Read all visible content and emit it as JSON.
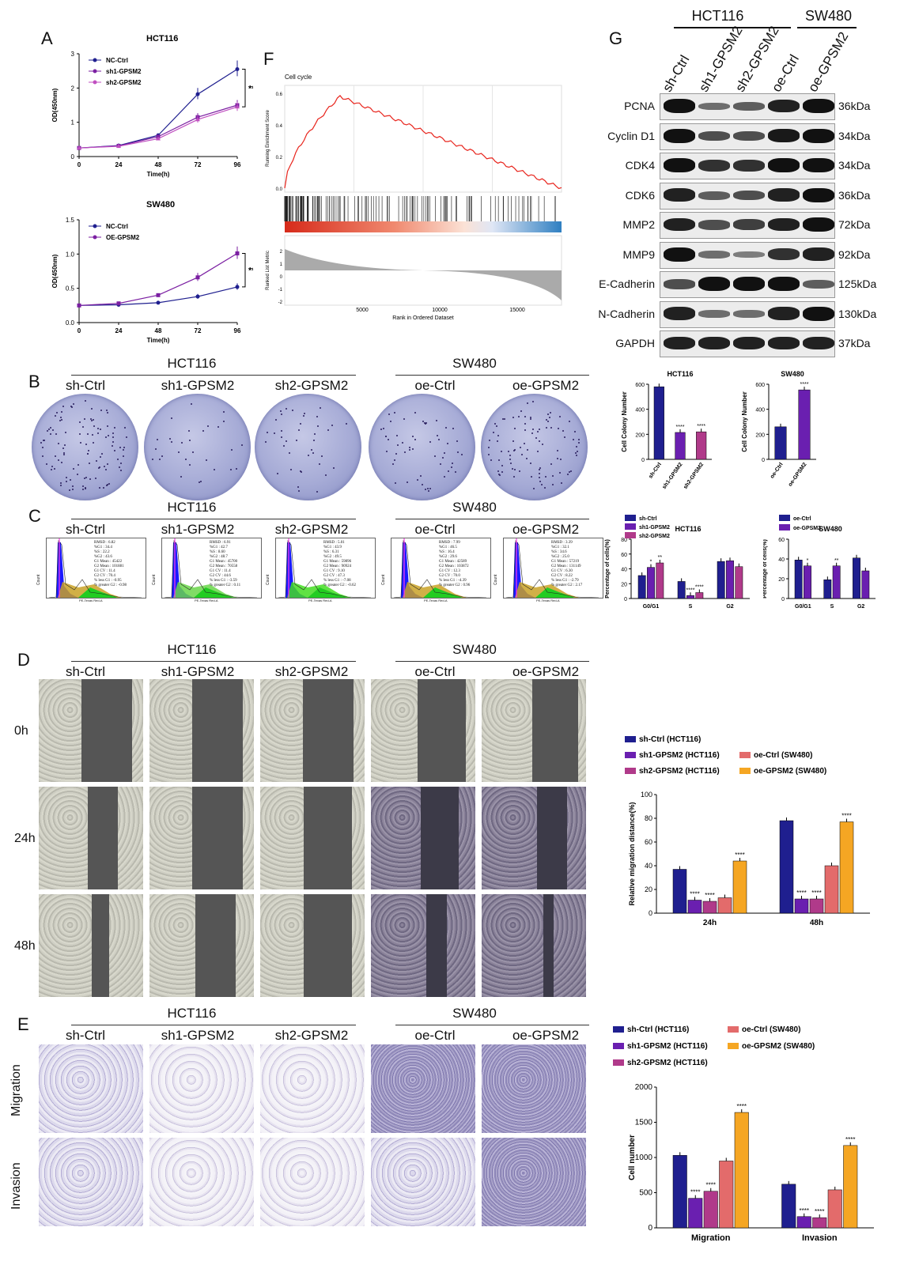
{
  "panels": {
    "A": "A",
    "B": "B",
    "C": "C",
    "D": "D",
    "E": "E",
    "F": "F",
    "G": "G"
  },
  "groups": {
    "hct": "HCT116",
    "sw": "SW480"
  },
  "conditions": [
    "sh-Ctrl",
    "sh1-GPSM2",
    "sh2-GPSM2",
    "oe-Ctrl",
    "oe-GPSM2"
  ],
  "timepoints": [
    "0h",
    "24h",
    "48h"
  ],
  "assays": [
    "Migration",
    "Invasion"
  ],
  "colors": {
    "navy": "#1f1f8f",
    "purple": "#7b1fa2",
    "magenta": "#b03a8a",
    "salmon": "#e36b6b",
    "orange": "#f5a623",
    "violet": "#6a1fb0",
    "red": "#e8241c"
  },
  "panelA": {
    "hct": {
      "title": "HCT116",
      "xlabel": "Time(h)",
      "ylabel": "OD(450nm)",
      "sig": "****",
      "legend": [
        "NC-Ctrl",
        "sh1-GPSM2",
        "sh2-GPSM2"
      ],
      "xticks": [
        "0",
        "24",
        "48",
        "72",
        "96"
      ],
      "yticks": [
        "0",
        "1",
        "2",
        "3"
      ]
    },
    "sw": {
      "title": "SW480",
      "xlabel": "Time(h)",
      "ylabel": "OD(450nm)",
      "sig": "****",
      "legend": [
        "NC-Ctrl",
        "OE-GPSM2"
      ],
      "xticks": [
        "0",
        "24",
        "48",
        "72",
        "96"
      ],
      "yticks": [
        "0.0",
        "0.5",
        "1.0",
        "1.5"
      ]
    }
  },
  "panelF": {
    "title": "Cell cycle",
    "ylabel1": "Running Enrichment Score",
    "ylabel2": "Ranked List Metric",
    "xlabel": "Rank in Ordered Dataset",
    "xticks": [
      "5000",
      "10000",
      "15000"
    ],
    "yticks1": [
      "0.0",
      "0.2",
      "0.4",
      "0.6"
    ],
    "yticks2": [
      "-2",
      "-1",
      "0",
      "1",
      "2"
    ]
  },
  "panelG": {
    "proteins": [
      "PCNA",
      "Cyclin D1",
      "CDK4",
      "CDK6",
      "MMP2",
      "MMP9",
      "E-Cadherin",
      "N-Cadherin",
      "GAPDH"
    ],
    "kda": [
      "36kDa",
      "34kDa",
      "34kDa",
      "36kDa",
      "72kDa",
      "92kDa",
      "125kDa",
      "130kDa",
      "37kDa"
    ],
    "lanes": [
      "sh-Ctrl",
      "sh1-GPSM2",
      "sh2-GPSM2",
      "oe-Ctrl",
      "oe-GPSM2"
    ]
  },
  "panelC": {
    "flow": [
      {
        "text": "RMSD : 6.82\n%G1 : 34.4\n%S : 22.2\n%G2 : 43.6\nG1 Mean : 45422\nG2 Mean : 101881\nG1 CV : 11.4\nG2 CV : 70.4\n% less G1 : -0.95\n% greater G2 : -0.98"
      },
      {
        "text": "RMSD : 6.91\n%G1 : 42.7\n%S : 8.60\n%G2 : 48.7\nG1 Mean : 45700\nG2 Mean : 70558\nG1 CV : 11.4\nG2 CV : 44.6\n% less G1 : -3.59\n% greater G2 : 0.11"
      },
      {
        "text": "RMSD : 5.01\n%G1 : 43.9\n%S : 6.31\n%G2 : 49.5\nG1 Mean : 59896\nG2 Mean : 90924\nG1 CV : 9.10\nG2 CV : 47.3\n% less G1 : -7.08\n% greater G2 : -0.62"
      },
      {
        "text": "RMSD : 7.99\n%G1 : 46.5\n%S : 16.4\n%G2 : 29.6\nG1 Mean : 42589\nG2 Mean : 103872\nG1 CV : 12.3\nG2 CV : 70.0\n% less G1 : -4.39\n% greater G2 : 0.96"
      },
      {
        "text": "RMSD : 3.39\n%G1 : 32.1\n%S : 34.6\n%G2 : 25.0\nG1 Mean : 57219\nG2 Mean : 131149\nG1 CV : 6.30\nG2 CV : 8.22\n% less G1 : -2.79\n% greater G2 : 2.17"
      }
    ],
    "xlabel": "PE-Texas Red-A",
    "ylabel": "Count"
  },
  "chart_data": [
    {
      "id": "A-HCT116",
      "type": "line",
      "title": "HCT116",
      "xlabel": "Time(h)",
      "ylabel": "OD(450nm)",
      "x": [
        0,
        24,
        48,
        72,
        96
      ],
      "ylim": [
        0,
        3
      ],
      "series": [
        {
          "name": "NC-Ctrl",
          "values": [
            0.25,
            0.32,
            0.62,
            1.82,
            2.55
          ]
        },
        {
          "name": "sh1-GPSM2",
          "values": [
            0.25,
            0.31,
            0.58,
            1.15,
            1.5
          ]
        },
        {
          "name": "sh2-GPSM2",
          "values": [
            0.25,
            0.3,
            0.52,
            1.08,
            1.45
          ]
        }
      ]
    },
    {
      "id": "A-SW480",
      "type": "line",
      "title": "SW480",
      "xlabel": "Time(h)",
      "ylabel": "OD(450nm)",
      "x": [
        0,
        24,
        48,
        72,
        96
      ],
      "ylim": [
        0,
        1.5
      ],
      "series": [
        {
          "name": "NC-Ctrl",
          "values": [
            0.25,
            0.26,
            0.29,
            0.38,
            0.52
          ]
        },
        {
          "name": "OE-GPSM2",
          "values": [
            0.25,
            0.28,
            0.4,
            0.66,
            1.01
          ]
        }
      ]
    },
    {
      "id": "G-HCT116-colony",
      "type": "bar",
      "title": "HCT116",
      "ylabel": "Cell Colony Number",
      "categories": [
        "sh-Ctrl",
        "sh1-GPSM2",
        "sh2-GPSM2"
      ],
      "values": [
        580,
        215,
        220
      ],
      "ylim": [
        0,
        600
      ],
      "yticks": [
        "0",
        "200",
        "400",
        "600"
      ],
      "sig": [
        "",
        "****",
        "****"
      ]
    },
    {
      "id": "G-SW480-colony",
      "type": "bar",
      "title": "SW480",
      "ylabel": "Cell Colony Number",
      "categories": [
        "oe-Ctrl",
        "oe-GPSM2"
      ],
      "values": [
        260,
        555
      ],
      "ylim": [
        0,
        600
      ],
      "yticks": [
        "0",
        "200",
        "400",
        "600"
      ],
      "sig": [
        "",
        "****"
      ]
    },
    {
      "id": "C-HCT116-cycle",
      "type": "bar",
      "title": "HCT116",
      "ylabel": "Percentage of cells(%)",
      "categories": [
        "G0/G1",
        "S",
        "G2"
      ],
      "ylim": [
        0,
        80
      ],
      "yticks": [
        "0",
        "20",
        "40",
        "60",
        "80"
      ],
      "series": [
        {
          "name": "sh-Ctrl",
          "values": [
            31,
            23,
            50
          ]
        },
        {
          "name": "sh1-GPSM2",
          "values": [
            42,
            4,
            51
          ]
        },
        {
          "name": "sh2-GPSM2",
          "values": [
            48,
            8,
            43
          ]
        }
      ],
      "sig": [
        [
          "",
          "*",
          "**"
        ],
        [
          "",
          "****",
          "****"
        ],
        [
          "",
          "",
          ""
        ]
      ]
    },
    {
      "id": "C-SW480-cycle",
      "type": "bar",
      "title": "SW480",
      "ylabel": "Percentage of cells(%)",
      "categories": [
        "G0/G1",
        "S",
        "G2"
      ],
      "ylim": [
        0,
        60
      ],
      "yticks": [
        "0",
        "20",
        "40",
        "60"
      ],
      "series": [
        {
          "name": "oe-Ctrl",
          "values": [
            39,
            19,
            41
          ]
        },
        {
          "name": "oe-GPSM2",
          "values": [
            33,
            33,
            28
          ]
        }
      ],
      "sig": [
        [
          "",
          "*"
        ],
        [
          "",
          "**"
        ],
        [
          "",
          ""
        ]
      ]
    },
    {
      "id": "D-migration",
      "type": "bar",
      "ylabel": "Relative migration distance(%)",
      "categories": [
        "24h",
        "48h"
      ],
      "ylim": [
        0,
        100
      ],
      "yticks": [
        "0",
        "20",
        "40",
        "60",
        "80",
        "100"
      ],
      "series": [
        {
          "name": "sh-Ctrl (HCT116)",
          "values": [
            37,
            78
          ]
        },
        {
          "name": "sh1-GPSM2 (HCT116)",
          "values": [
            11,
            12
          ]
        },
        {
          "name": "sh2-GPSM2 (HCT116)",
          "values": [
            10,
            12
          ]
        },
        {
          "name": "oe-Ctrl (SW480)",
          "values": [
            13,
            40
          ]
        },
        {
          "name": "oe-GPSM2 (SW480)",
          "values": [
            44,
            77
          ]
        }
      ],
      "sig": [
        [
          "",
          "****",
          "****",
          "",
          "****"
        ],
        [
          "",
          "****",
          "****",
          "",
          "****"
        ]
      ]
    },
    {
      "id": "E-transwell",
      "type": "bar",
      "ylabel": "Cell number",
      "categories": [
        "Migration",
        "Invasion"
      ],
      "ylim": [
        0,
        2000
      ],
      "yticks": [
        "0",
        "500",
        "1000",
        "1500",
        "2000"
      ],
      "series": [
        {
          "name": "sh-Ctrl (HCT116)",
          "values": [
            1030,
            620
          ]
        },
        {
          "name": "sh1-GPSM2 (HCT116)",
          "values": [
            420,
            160
          ]
        },
        {
          "name": "sh2-GPSM2 (HCT116)",
          "values": [
            520,
            145
          ]
        },
        {
          "name": "oe-Ctrl (SW480)",
          "values": [
            950,
            540
          ]
        },
        {
          "name": "oe-GPSM2 (SW480)",
          "values": [
            1640,
            1170
          ]
        }
      ],
      "sig": [
        [
          "",
          "****",
          "****",
          "",
          "****"
        ],
        [
          "",
          "****",
          "****",
          "",
          "****"
        ]
      ]
    }
  ]
}
